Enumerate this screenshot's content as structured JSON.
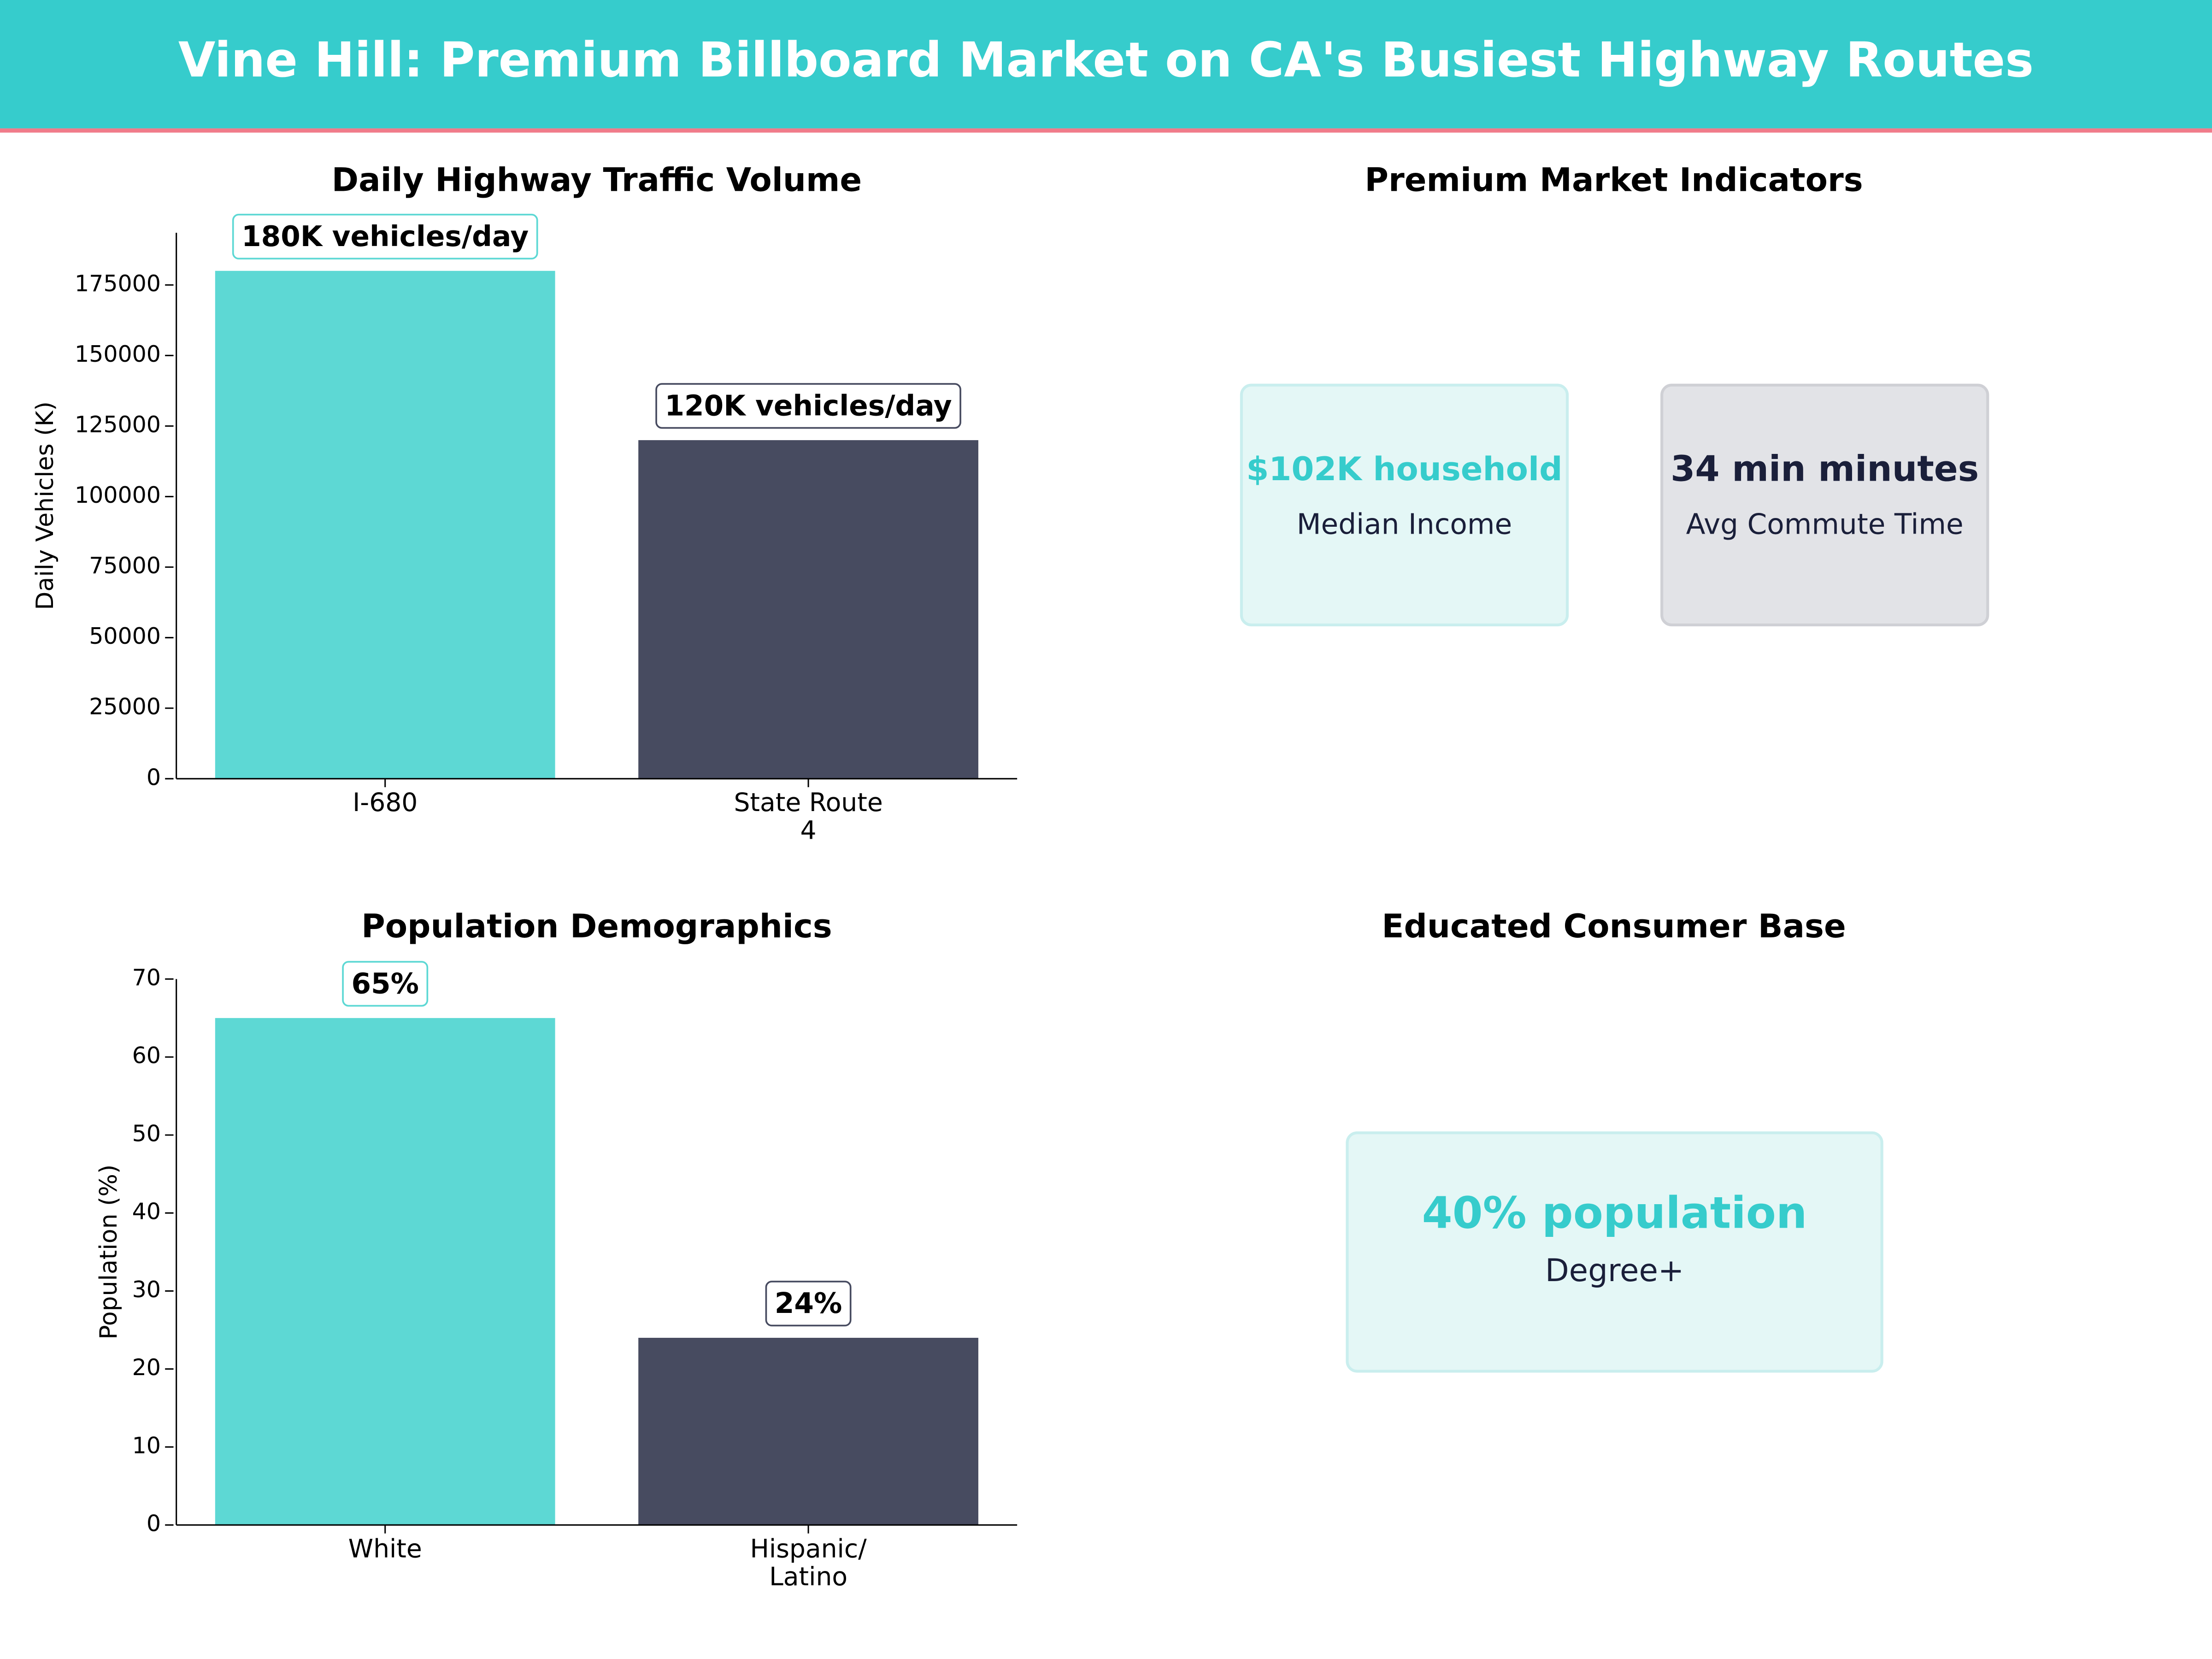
{
  "title": "Vine Hill: Premium Billboard Market on CA's Busiest Highway Routes",
  "chart_data": [
    {
      "type": "bar",
      "title": "Daily Highway Traffic Volume",
      "ylabel": "Daily Vehicles (K)",
      "categories": [
        "I-680",
        "State Route\n4"
      ],
      "values": [
        180000,
        120000
      ],
      "value_labels": [
        "180K vehicles/day",
        "120K vehicles/day"
      ],
      "colors": [
        "#5dd8d4",
        "#474b60"
      ],
      "label_borders": [
        "#5dd8d4",
        "#474b60"
      ],
      "ylim": [
        0,
        193500
      ],
      "yticks": [
        0,
        25000,
        50000,
        75000,
        100000,
        125000,
        150000,
        175000
      ]
    },
    {
      "type": "bar",
      "title": "Population Demographics",
      "ylabel": "Population (%)",
      "categories": [
        "White",
        "Hispanic/\nLatino"
      ],
      "values": [
        65,
        24
      ],
      "value_labels": [
        "65%",
        "24%"
      ],
      "colors": [
        "#5dd8d4",
        "#474b60"
      ],
      "label_borders": [
        "#5dd8d4",
        "#474b60"
      ],
      "ylim": [
        0,
        70
      ],
      "yticks": [
        0,
        10,
        20,
        30,
        40,
        50,
        60,
        70
      ]
    }
  ],
  "indicators": {
    "title": "Premium Market Indicators",
    "cards": [
      {
        "value": "$102K household",
        "label": "Median Income"
      },
      {
        "value": "34 min minutes",
        "label": "Avg Commute Time"
      }
    ]
  },
  "education": {
    "title": "Educated Consumer Base",
    "value": "40% population",
    "label": "Degree+"
  }
}
